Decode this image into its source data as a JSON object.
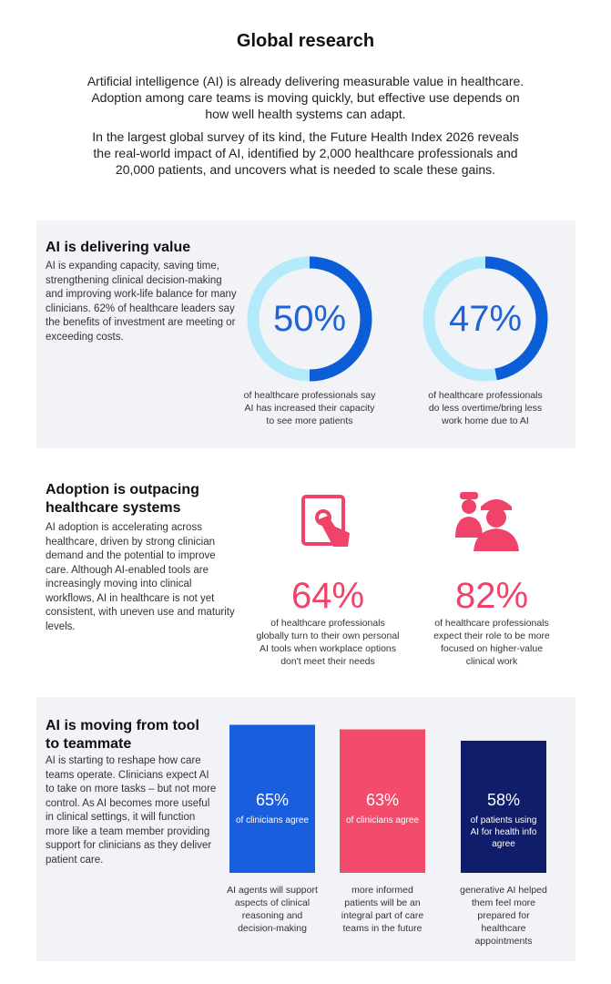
{
  "header": {
    "title": "Global research",
    "paragraphs": [
      "Artificial intelligence (AI) is already delivering measurable value in healthcare. Adoption among care teams is moving quickly, but effective use depends on how well health systems can adapt.",
      "In the largest global survey of its kind, the Future Health Index 2026 reveals the real-world impact of AI, identified by 2,000 healthcare professionals and 20,000 patients, and uncovers what is needed to scale these gains."
    ]
  },
  "sections": [
    {
      "title": "AI is delivering value",
      "body": "AI is expanding capacity, saving time, strengthening clinical decision-making and improving work-life balance for many clinicians. 62% of healthcare leaders say the benefits of investment are meeting or exceeding costs.",
      "stats": [
        {
          "value": 50,
          "label": "50%",
          "caption": "of healthcare professionals say AI has increased their capacity to see more patients"
        },
        {
          "value": 47,
          "label": "47%",
          "caption": "of healthcare professionals do less overtime/bring less work home due to AI"
        }
      ]
    },
    {
      "title": "Adoption is outpacing healthcare systems",
      "body": "AI adoption is accelerating across healthcare, driven by strong clinician demand and the potential to improve care. Although AI-enabled tools are increasingly moving into clinical workflows, AI in healthcare is not yet consistent, with uneven use and maturity levels.",
      "stats": [
        {
          "value": 64,
          "label": "64%",
          "caption": "of healthcare professionals globally turn to their own personal AI tools when workplace options don't meet their needs"
        },
        {
          "value": 82,
          "label": "82%",
          "caption": "of healthcare professionals expect their role to be more focused on higher-value clinical work"
        }
      ]
    },
    {
      "title": "AI is moving from tool to teammate",
      "body": "AI is starting to reshape how care teams operate. Clinicians expect AI to take on more tasks – but not more control. As AI becomes more useful in clinical settings, it will function more like a team member providing support for clinicians as they deliver patient care.",
      "stats": [
        {
          "value": 65,
          "label": "65%",
          "note": "of clinicians agree",
          "caption": "AI agents will support aspects of clinical reasoning and decision-making"
        },
        {
          "value": 63,
          "label": "63%",
          "note": "of clinicians agree",
          "caption": "more informed patients will be an integral part of care teams in the future"
        },
        {
          "value": 58,
          "label": "58%",
          "note": "of patients using AI for health info agree",
          "caption": "generative AI helped them feel more prepared for healthcare appointments"
        }
      ]
    }
  ]
}
